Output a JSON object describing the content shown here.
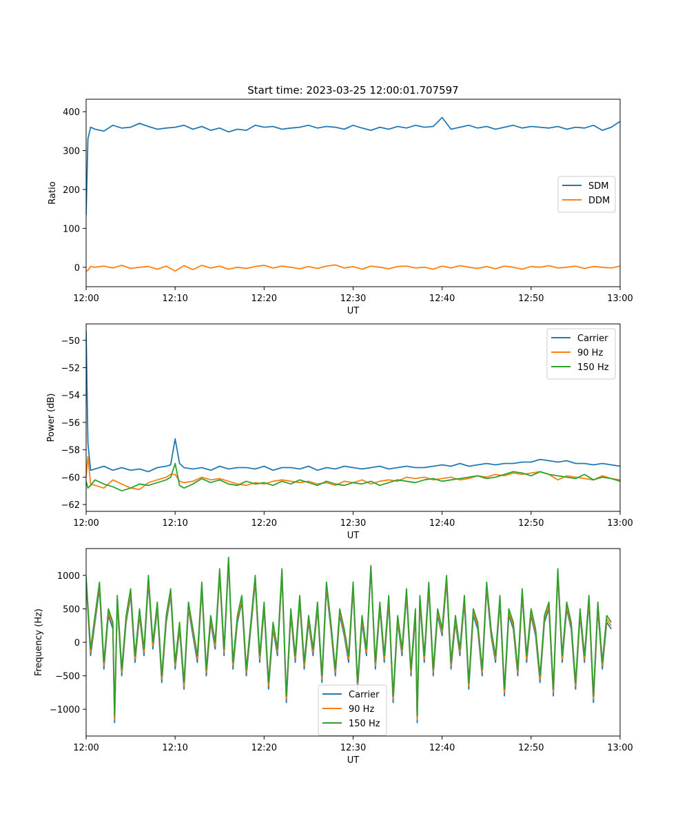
{
  "chart_data": [
    {
      "type": "line",
      "title": "Start time: 2023-03-25 12:00:01.707597",
      "xlabel": "UT",
      "ylabel": "Ratio",
      "xlim": [
        "12:00",
        "13:00"
      ],
      "ylim": [
        -50,
        432
      ],
      "xticks": [
        "12:00",
        "12:10",
        "12:20",
        "12:30",
        "12:40",
        "12:50",
        "13:00"
      ],
      "yticks": [
        0,
        100,
        200,
        300,
        400
      ],
      "grid": false,
      "legend": "center-right",
      "x_minutes": [
        0,
        0.2,
        0.5,
        1,
        2,
        3,
        4,
        5,
        6,
        7,
        8,
        9,
        10,
        11,
        12,
        13,
        14,
        15,
        16,
        17,
        18,
        19,
        20,
        21,
        22,
        23,
        24,
        25,
        26,
        27,
        28,
        29,
        30,
        31,
        32,
        33,
        34,
        35,
        36,
        37,
        38,
        39,
        40,
        41,
        42,
        43,
        44,
        45,
        46,
        47,
        48,
        49,
        50,
        51,
        52,
        53,
        54,
        55,
        56,
        57,
        58,
        59,
        60
      ],
      "series": [
        {
          "name": "SDM",
          "color": "#1f77b4",
          "values": [
            135,
            330,
            360,
            355,
            350,
            365,
            358,
            360,
            370,
            362,
            355,
            358,
            360,
            365,
            355,
            362,
            352,
            358,
            348,
            355,
            352,
            365,
            360,
            362,
            355,
            358,
            360,
            365,
            358,
            362,
            360,
            355,
            365,
            358,
            352,
            360,
            355,
            362,
            358,
            365,
            360,
            362,
            385,
            355,
            360,
            365,
            358,
            362,
            355,
            360,
            365,
            358,
            362,
            360,
            358,
            362,
            355,
            360,
            358,
            365,
            352,
            360,
            375
          ]
        },
        {
          "name": "DDM",
          "color": "#ff7f0e",
          "values": [
            -10,
            -8,
            2,
            0,
            3,
            -2,
            5,
            -3,
            0,
            2,
            -5,
            3,
            -10,
            4,
            -6,
            5,
            -2,
            3,
            -5,
            0,
            -3,
            2,
            5,
            -2,
            3,
            0,
            -4,
            2,
            -3,
            3,
            6,
            -2,
            2,
            -5,
            3,
            0,
            -4,
            2,
            3,
            -2,
            0,
            -5,
            3,
            -2,
            4,
            0,
            -3,
            2,
            -4,
            3,
            0,
            -5,
            2,
            0,
            4,
            -2,
            0,
            3,
            -3,
            2,
            0,
            -2,
            3
          ]
        }
      ]
    },
    {
      "type": "line",
      "title": "",
      "xlabel": "UT",
      "ylabel": "Power (dB)",
      "xlim": [
        "12:00",
        "13:00"
      ],
      "ylim": [
        -62.5,
        -48.8
      ],
      "xticks": [
        "12:00",
        "12:10",
        "12:20",
        "12:30",
        "12:40",
        "12:50",
        "13:00"
      ],
      "yticks": [
        -62,
        -60,
        -58,
        -56,
        -54,
        -52,
        -50
      ],
      "grid": false,
      "legend": "top-right",
      "x_minutes": [
        0,
        0.2,
        0.5,
        1,
        2,
        3,
        4,
        5,
        6,
        7,
        8,
        9,
        9.5,
        10,
        10.5,
        11,
        12,
        13,
        14,
        15,
        16,
        17,
        18,
        19,
        20,
        21,
        22,
        23,
        24,
        25,
        26,
        27,
        28,
        29,
        30,
        31,
        32,
        33,
        34,
        35,
        36,
        37,
        38,
        39,
        40,
        41,
        42,
        43,
        44,
        45,
        46,
        47,
        48,
        49,
        50,
        51,
        52,
        53,
        54,
        55,
        56,
        57,
        58,
        59,
        60
      ],
      "series": [
        {
          "name": "Carrier",
          "color": "#1f77b4",
          "values": [
            -49.3,
            -57.5,
            -59.5,
            -59.4,
            -59.2,
            -59.5,
            -59.3,
            -59.5,
            -59.4,
            -59.6,
            -59.3,
            -59.2,
            -59.1,
            -57.2,
            -59.0,
            -59.3,
            -59.4,
            -59.3,
            -59.5,
            -59.2,
            -59.4,
            -59.3,
            -59.3,
            -59.4,
            -59.2,
            -59.5,
            -59.3,
            -59.3,
            -59.4,
            -59.2,
            -59.5,
            -59.3,
            -59.4,
            -59.2,
            -59.3,
            -59.4,
            -59.3,
            -59.2,
            -59.4,
            -59.3,
            -59.2,
            -59.3,
            -59.3,
            -59.2,
            -59.1,
            -59.2,
            -59.0,
            -59.2,
            -59.1,
            -59.0,
            -59.1,
            -59.0,
            -59.0,
            -58.9,
            -58.9,
            -58.7,
            -58.8,
            -58.9,
            -58.8,
            -59.0,
            -59.0,
            -59.1,
            -59.0,
            -59.1,
            -59.2
          ]
        },
        {
          "name": "90 Hz",
          "color": "#ff7f0e",
          "values": [
            -60.0,
            -58.5,
            -60.5,
            -60.6,
            -60.8,
            -60.2,
            -60.5,
            -60.8,
            -60.9,
            -60.4,
            -60.2,
            -60.0,
            -59.8,
            -59.8,
            -60.3,
            -60.4,
            -60.3,
            -60.0,
            -60.2,
            -60.1,
            -60.3,
            -60.5,
            -60.6,
            -60.4,
            -60.5,
            -60.3,
            -60.2,
            -60.3,
            -60.4,
            -60.3,
            -60.5,
            -60.4,
            -60.6,
            -60.3,
            -60.4,
            -60.2,
            -60.5,
            -60.3,
            -60.2,
            -60.3,
            -60.0,
            -60.1,
            -60.0,
            -60.2,
            -60.1,
            -60.0,
            -60.2,
            -60.1,
            -59.9,
            -60.0,
            -59.8,
            -59.9,
            -59.7,
            -59.8,
            -59.7,
            -59.6,
            -59.8,
            -60.2,
            -59.9,
            -60.0,
            -60.1,
            -60.2,
            -59.9,
            -60.1,
            -60.2
          ]
        },
        {
          "name": "150 Hz",
          "color": "#2ca02c",
          "values": [
            -60.3,
            -60.8,
            -60.6,
            -60.2,
            -60.5,
            -60.7,
            -61.0,
            -60.8,
            -60.5,
            -60.6,
            -60.4,
            -60.2,
            -60.0,
            -59.0,
            -60.6,
            -60.8,
            -60.5,
            -60.1,
            -60.4,
            -60.2,
            -60.5,
            -60.6,
            -60.3,
            -60.5,
            -60.4,
            -60.6,
            -60.3,
            -60.5,
            -60.2,
            -60.4,
            -60.6,
            -60.3,
            -60.5,
            -60.6,
            -60.4,
            -60.5,
            -60.3,
            -60.6,
            -60.4,
            -60.2,
            -60.3,
            -60.4,
            -60.2,
            -60.1,
            -60.3,
            -60.2,
            -60.1,
            -60.0,
            -59.9,
            -60.1,
            -60.0,
            -59.8,
            -59.6,
            -59.7,
            -59.9,
            -59.6,
            -59.8,
            -59.9,
            -60.0,
            -60.1,
            -59.8,
            -60.2,
            -60.0,
            -60.1,
            -60.3
          ]
        }
      ]
    },
    {
      "type": "line",
      "title": "",
      "xlabel": "UT",
      "ylabel": "Frequency (Hz)",
      "xlim": [
        "12:00",
        "13:00"
      ],
      "ylim": [
        -1400,
        1400
      ],
      "xticks": [
        "12:00",
        "12:10",
        "12:20",
        "12:30",
        "12:40",
        "12:50",
        "13:00"
      ],
      "yticks": [
        -1000,
        -500,
        0,
        500,
        1000
      ],
      "grid": false,
      "legend": "bottom-center",
      "x_minutes": [
        0,
        0.5,
        1,
        1.5,
        2,
        2.5,
        3,
        3.2,
        3.5,
        4,
        4.5,
        5,
        5.5,
        6,
        6.5,
        7,
        7.5,
        8,
        8.5,
        9,
        9.5,
        10,
        10.5,
        11,
        11.5,
        12,
        12.5,
        13,
        13.5,
        14,
        14.5,
        15,
        15.5,
        16,
        16.5,
        17,
        17.5,
        18,
        18.5,
        19,
        19.5,
        20,
        20.5,
        21,
        21.5,
        22,
        22.5,
        23,
        23.5,
        24,
        24.5,
        25,
        25.5,
        26,
        26.5,
        27,
        27.5,
        28,
        28.5,
        29,
        29.5,
        30,
        30.5,
        31,
        31.5,
        32,
        32.5,
        33,
        33.5,
        34,
        34.5,
        35,
        35.5,
        36,
        36.5,
        37,
        37.2,
        37.5,
        38,
        38.5,
        39,
        39.5,
        40,
        40.5,
        41,
        41.5,
        42,
        42.5,
        43,
        43.5,
        44,
        44.5,
        45,
        45.5,
        46,
        46.5,
        47,
        47.5,
        48,
        48.5,
        49,
        49.5,
        50,
        50.5,
        51,
        51.5,
        52,
        52.5,
        53,
        53.5,
        54,
        54.5,
        55,
        55.5,
        56,
        56.5,
        57,
        57.5,
        58,
        58.5,
        59,
        59.5,
        60
      ],
      "series": [
        {
          "name": "Carrier",
          "color": "#1f77b4",
          "values": [
            900,
            -200,
            300,
            800,
            -400,
            400,
            200,
            -1200,
            600,
            -500,
            300,
            700,
            -300,
            400,
            -200,
            900,
            -100,
            500,
            -600,
            300,
            700,
            -400,
            200,
            -700,
            500,
            100,
            -300,
            800,
            -500,
            300,
            -100,
            1000,
            -200,
            1200,
            -400,
            300,
            600,
            -500,
            200,
            900,
            -300,
            500,
            -700,
            200,
            -200,
            1000,
            -900,
            400,
            -300,
            600,
            -400,
            300,
            -200,
            500,
            -600,
            800,
            200,
            -500,
            400,
            100,
            -300,
            800,
            -700,
            300,
            -200,
            1100,
            -400,
            500,
            -300,
            600,
            -900,
            300,
            -200,
            700,
            -500,
            400,
            -1200,
            600,
            -300,
            800,
            -500,
            400,
            100,
            900,
            -400,
            300,
            -200,
            600,
            -700,
            400,
            200,
            -500,
            800,
            100,
            -300,
            600,
            -800,
            400,
            200,
            -500,
            700,
            -300,
            400,
            100,
            -600,
            300,
            500,
            -800,
            1000,
            -300,
            500,
            200,
            -700,
            400,
            -300,
            600,
            -900,
            500,
            -400,
            300,
            200
          ]
        },
        {
          "name": "90 Hz",
          "color": "#ff7f0e",
          "values": [
            950,
            -150,
            350,
            850,
            -350,
            450,
            250,
            -1150,
            650,
            -450,
            350,
            750,
            -250,
            450,
            -150,
            950,
            -50,
            550,
            -550,
            350,
            750,
            -350,
            250,
            -650,
            550,
            150,
            -250,
            850,
            -450,
            350,
            -50,
            1050,
            -150,
            1250,
            -350,
            350,
            650,
            -450,
            250,
            950,
            -250,
            550,
            -650,
            250,
            -150,
            1050,
            -850,
            450,
            -250,
            650,
            -350,
            350,
            -150,
            550,
            -550,
            850,
            250,
            -450,
            450,
            150,
            -250,
            850,
            -650,
            350,
            -150,
            1150,
            -350,
            550,
            -250,
            650,
            -850,
            350,
            -150,
            750,
            -450,
            450,
            -1150,
            650,
            -250,
            850,
            -450,
            450,
            150,
            950,
            -350,
            350,
            -150,
            650,
            -650,
            450,
            250,
            -450,
            850,
            150,
            -250,
            650,
            -750,
            450,
            250,
            -450,
            750,
            -250,
            450,
            150,
            -550,
            350,
            550,
            -750,
            1050,
            -250,
            550,
            250,
            -650,
            450,
            -250,
            650,
            -850,
            550,
            -350,
            350,
            250
          ]
        },
        {
          "name": "150 Hz",
          "color": "#2ca02c",
          "values": [
            980,
            -100,
            400,
            900,
            -300,
            500,
            300,
            -1100,
            700,
            -400,
            400,
            800,
            -200,
            500,
            -100,
            1000,
            0,
            600,
            -500,
            400,
            800,
            -300,
            300,
            -600,
            600,
            200,
            -200,
            900,
            -400,
            400,
            0,
            1100,
            -100,
            1270,
            -300,
            400,
            700,
            -400,
            300,
            1000,
            -200,
            600,
            -600,
            300,
            -100,
            1100,
            -800,
            500,
            -200,
            700,
            -300,
            400,
            -100,
            600,
            -500,
            900,
            300,
            -400,
            500,
            200,
            -200,
            900,
            -600,
            400,
            -100,
            1140,
            -300,
            600,
            -200,
            700,
            -800,
            400,
            -100,
            800,
            -400,
            500,
            -1100,
            700,
            -200,
            900,
            -400,
            500,
            200,
            1000,
            -300,
            400,
            -100,
            700,
            -600,
            500,
            300,
            -400,
            900,
            200,
            -200,
            700,
            -700,
            500,
            300,
            -400,
            800,
            -200,
            500,
            200,
            -500,
            400,
            600,
            -700,
            1100,
            -200,
            600,
            300,
            -600,
            500,
            -200,
            700,
            -800,
            600,
            -300,
            400,
            300
          ]
        }
      ]
    }
  ]
}
